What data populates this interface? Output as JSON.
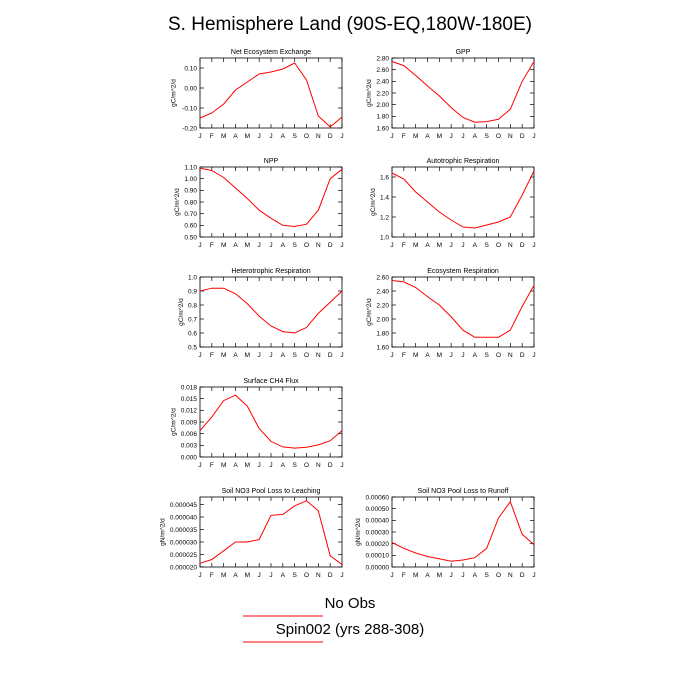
{
  "title": "S. Hemisphere Land (90S-EQ,180W-180E)",
  "months": [
    "J",
    "F",
    "M",
    "A",
    "M",
    "J",
    "J",
    "A",
    "S",
    "O",
    "N",
    "D",
    "J"
  ],
  "legend": {
    "obs_label": "No Obs",
    "model_label": "Spin002 (yrs 288-308)",
    "obs_color": "#ff0000",
    "model_color": "#ff0000"
  },
  "chart_data": [
    {
      "type": "line",
      "title": "Net Ecosystem Exchange",
      "ylabel": "gC/m^2/d",
      "ylim": [
        -0.2,
        0.15
      ],
      "yticks": [
        "0.10",
        "0.00",
        "-0.10",
        "-0.20"
      ],
      "ytick_values": [
        0.1,
        0.0,
        -0.1,
        -0.2
      ],
      "series": [
        {
          "values": [
            -0.15,
            -0.125,
            -0.08,
            -0.01,
            0.03,
            0.07,
            0.08,
            0.095,
            0.125,
            0.04,
            -0.14,
            -0.195,
            -0.145
          ]
        }
      ]
    },
    {
      "type": "line",
      "title": "GPP",
      "ylabel": "gC/m^2/d",
      "ylim": [
        1.6,
        2.8
      ],
      "yticks": [
        "2.80",
        "2.60",
        "2.40",
        "2.20",
        "2.00",
        "1.80",
        "1.60"
      ],
      "ytick_values": [
        2.8,
        2.6,
        2.4,
        2.2,
        2.0,
        1.8,
        1.6
      ],
      "series": [
        {
          "values": [
            2.74,
            2.67,
            2.5,
            2.32,
            2.15,
            1.95,
            1.78,
            1.7,
            1.71,
            1.75,
            1.92,
            2.4,
            2.74
          ]
        }
      ]
    },
    {
      "type": "line",
      "title": "NPP",
      "ylabel": "gC/m^2/d",
      "ylim": [
        0.5,
        1.1
      ],
      "yticks": [
        "1.10",
        "1.00",
        "0.90",
        "0.80",
        "0.70",
        "0.60",
        "0.50"
      ],
      "ytick_values": [
        1.1,
        1.0,
        0.9,
        0.8,
        0.7,
        0.6,
        0.5
      ],
      "series": [
        {
          "values": [
            1.09,
            1.07,
            1.01,
            0.92,
            0.83,
            0.73,
            0.66,
            0.6,
            0.59,
            0.61,
            0.73,
            1.0,
            1.08
          ]
        }
      ]
    },
    {
      "type": "line",
      "title": "Autotrophic Respiration",
      "ylabel": "gC/m^2/d",
      "ylim": [
        1.0,
        1.7
      ],
      "yticks": [
        "1.6",
        "1.4",
        "1.2",
        "1.0"
      ],
      "ytick_values": [
        1.6,
        1.4,
        1.2,
        1.0
      ],
      "series": [
        {
          "values": [
            1.64,
            1.58,
            1.45,
            1.35,
            1.25,
            1.17,
            1.1,
            1.09,
            1.12,
            1.15,
            1.2,
            1.42,
            1.66
          ]
        }
      ]
    },
    {
      "type": "line",
      "title": "Heterotrophic Respiration",
      "ylabel": "gC/m^2/d",
      "ylim": [
        0.5,
        1.0
      ],
      "yticks": [
        "1.0",
        "0.9",
        "0.8",
        "0.7",
        "0.6",
        "0.5"
      ],
      "ytick_values": [
        1.0,
        0.9,
        0.8,
        0.7,
        0.6,
        0.5
      ],
      "series": [
        {
          "values": [
            0.9,
            0.92,
            0.92,
            0.88,
            0.81,
            0.72,
            0.65,
            0.61,
            0.6,
            0.64,
            0.74,
            0.82,
            0.9
          ]
        }
      ]
    },
    {
      "type": "line",
      "title": "Ecosystem Respiration",
      "ylabel": "gC/m^2/d",
      "ylim": [
        1.6,
        2.6
      ],
      "yticks": [
        "2.60",
        "2.40",
        "2.20",
        "2.00",
        "1.80",
        "1.60"
      ],
      "ytick_values": [
        2.6,
        2.4,
        2.2,
        2.0,
        1.8,
        1.6
      ],
      "series": [
        {
          "values": [
            2.55,
            2.53,
            2.45,
            2.32,
            2.2,
            2.03,
            1.84,
            1.74,
            1.74,
            1.74,
            1.84,
            2.18,
            2.48
          ]
        }
      ]
    },
    {
      "type": "line",
      "title": "Surface CH4 Flux",
      "ylabel": "gC/m^2/d",
      "ylim": [
        0.0,
        0.018
      ],
      "yticks": [
        "0.018",
        "0.015",
        "0.012",
        "0.009",
        "0.006",
        "0.003",
        "0.000"
      ],
      "ytick_values": [
        0.018,
        0.015,
        0.012,
        0.009,
        0.006,
        0.003,
        0.0
      ],
      "series": [
        {
          "values": [
            0.0068,
            0.0103,
            0.0145,
            0.0159,
            0.0131,
            0.0073,
            0.004,
            0.0026,
            0.0023,
            0.0025,
            0.0031,
            0.0042,
            0.0068
          ]
        }
      ]
    },
    null,
    {
      "type": "line",
      "title": "Soil NO3 Pool Loss to Leaching",
      "ylabel": "gN/m^2/d",
      "ylim": [
        2e-05,
        4.8e-05
      ],
      "yticks": [
        "0.000045",
        "0.000040",
        "0.000035",
        "0.000030",
        "0.000025",
        "0.000020"
      ],
      "ytick_values": [
        4.5e-05,
        4e-05,
        3.5e-05,
        3e-05,
        2.5e-05,
        2e-05
      ],
      "series": [
        {
          "values": [
            2.15e-05,
            2.3e-05,
            2.65e-05,
            3e-05,
            3e-05,
            3.1e-05,
            4.07e-05,
            4.1e-05,
            4.45e-05,
            4.65e-05,
            4.25e-05,
            2.45e-05,
            2.1e-05
          ]
        }
      ]
    },
    {
      "type": "line",
      "title": "Soil NO3 Pool Loss to Runoff",
      "ylabel": "gN/m^2/d",
      "ylim": [
        0.0,
        0.0006
      ],
      "yticks": [
        "0.00060",
        "0.00050",
        "0.00040",
        "0.00030",
        "0.00020",
        "0.00010",
        "0.00000"
      ],
      "ytick_values": [
        0.0006,
        0.0005,
        0.0004,
        0.0003,
        0.0002,
        0.0001,
        0.0
      ],
      "series": [
        {
          "values": [
            0.00021,
            0.00016,
            0.00012,
            9e-05,
            7e-05,
            5e-05,
            6e-05,
            8e-05,
            0.00016,
            0.00042,
            0.00056,
            0.00028,
            0.00019
          ]
        }
      ]
    }
  ]
}
